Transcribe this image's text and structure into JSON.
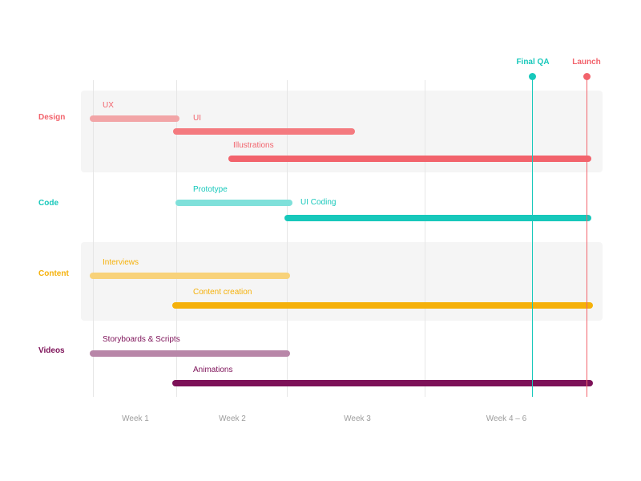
{
  "groups": {
    "design": {
      "label": "Design",
      "color": "#f2636c"
    },
    "code": {
      "label": "Code",
      "color": "#17c8bb"
    },
    "content": {
      "label": "Content",
      "color": "#f5b10a"
    },
    "videos": {
      "label": "Videos",
      "color": "#7d1158"
    }
  },
  "tasks": {
    "ux": {
      "label": "UX",
      "bar_color": "#f2a5a7",
      "label_color": "#f2636c"
    },
    "ui": {
      "label": "UI",
      "bar_color": "#f47a7f",
      "label_color": "#f2636c"
    },
    "illustrations": {
      "label": "Illustrations",
      "bar_color": "#f2636c",
      "label_color": "#f2636c"
    },
    "prototype": {
      "label": "Prototype",
      "bar_color": "#7fe0da",
      "label_color": "#17c8bb"
    },
    "ui_coding": {
      "label": "UI Coding",
      "bar_color": "#17c8bb",
      "label_color": "#17c8bb"
    },
    "interviews": {
      "label": "Interviews",
      "bar_color": "#f8d27a",
      "label_color": "#f5b10a"
    },
    "content_creation": {
      "label": "Content creation",
      "bar_color": "#f5b10a",
      "label_color": "#f5b10a"
    },
    "storyboards": {
      "label": "Storyboards & Scripts",
      "bar_color": "#b886a8",
      "label_color": "#7d1158"
    },
    "animations": {
      "label": "Animations",
      "bar_color": "#7d1158",
      "label_color": "#7d1158"
    }
  },
  "weeks": [
    "Week 1",
    "Week 2",
    "Week 3",
    "Week 4 – 6"
  ],
  "milestones": {
    "final_qa": {
      "label": "Final QA",
      "color": "#17c8bb"
    },
    "launch": {
      "label": "Launch",
      "color": "#f2636c"
    }
  }
}
